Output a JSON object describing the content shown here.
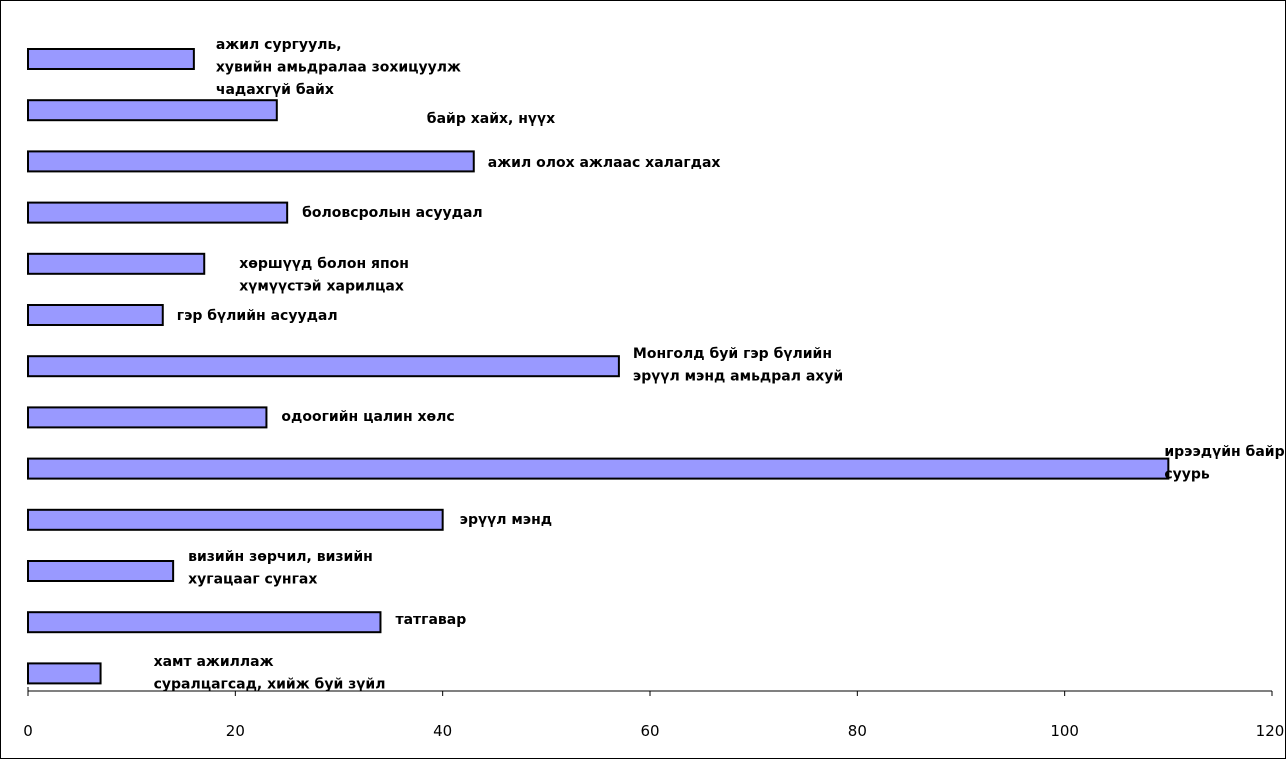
{
  "chart_data": {
    "type": "bar",
    "orientation": "horizontal",
    "title": "",
    "xlabel": "",
    "ylabel": "",
    "xlim": [
      0,
      120
    ],
    "xticks": [
      0,
      20,
      40,
      60,
      80,
      100,
      120
    ],
    "grid": false,
    "legend": "none",
    "bar_color": "#9999ff",
    "categories": [
      "ажил сургууль, хувийн амьдралаа зохицуулж чадахгүй байх",
      "байр хайх, нүүх",
      "ажил олох ажлаас халагдах",
      "боловсролын асуудал",
      "хөршүүд болон япон хүмүүстэй харилцах",
      "гэр бүлийн асуудал",
      "Монголд буй гэр бүлийн эрүүл мэнд амьдрал ахуй",
      "одоогийн цалин хөлс",
      "ирээдүйн байр суурь",
      "эрүүл мэнд",
      "визийн зөрчил, визийн хугацааг сунгах",
      "татгавар",
      "хамт ажиллаж суралцагсад, хийж буй зүйл"
    ],
    "values": [
      16,
      24,
      43,
      25,
      17,
      13,
      57,
      23,
      110,
      40,
      14,
      34,
      7
    ],
    "label_lines": [
      [
        "ажил сургууль,",
        "хувийн амьдралаа зохицуулж",
        "чадахгүй байх"
      ],
      [
        "байр хайх, нүүх"
      ],
      [
        "ажил олох ажлаас халагдах"
      ],
      [
        "боловсролын асуудал"
      ],
      [
        "хөршүүд болон япон",
        "хүмүүстэй харилцах"
      ],
      [
        "гэр бүлийн асуудал"
      ],
      [
        "Монголд буй гэр бүлийн",
        "эрүүл мэнд амьдрал ахуй"
      ],
      [
        "одоогийн цалин хөлс"
      ],
      [
        "ирээдүйн байр",
        "суурь"
      ],
      [
        "эрүүл мэнд"
      ],
      [
        "визийн зөрчил, визийн",
        "хугацааг сунгах"
      ],
      [
        "татгавар"
      ],
      [
        "хамт ажиллаж",
        "суралцагсад,  хийж буй зүйл"
      ]
    ]
  }
}
